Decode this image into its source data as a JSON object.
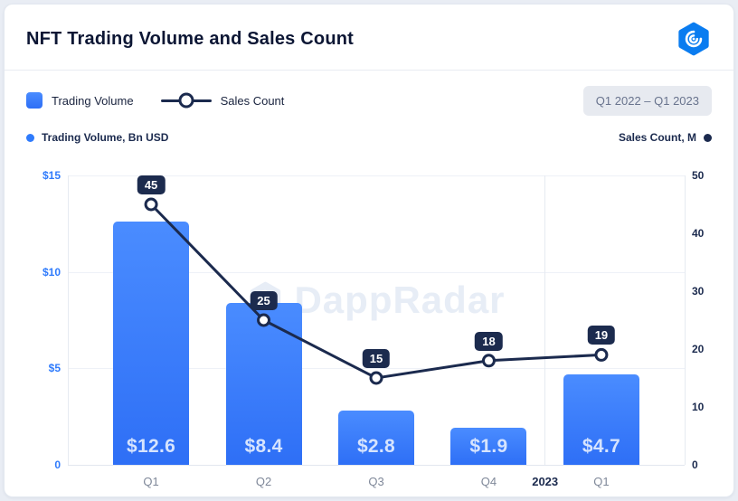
{
  "header": {
    "title": "NFT Trading Volume and Sales Count"
  },
  "legend": {
    "volume": "Trading Volume",
    "sales": "Sales Count",
    "range": "Q1 2022 – Q1 2023"
  },
  "captions": {
    "left": "Trading Volume, Bn USD",
    "right": "Sales Count, M"
  },
  "watermark": "DappRadar",
  "colors": {
    "bar_top": "#4a8cff",
    "bar_bottom": "#2e6ff6",
    "bar_label": "#d6e4fe",
    "line": "#1b2a4e",
    "badge_bg": "#1c2b4e",
    "badge_text": "#ffffff",
    "left_axis": "#2f7bfc",
    "right_axis": "#1b2a4e",
    "logo_blue": "#0a7cf0"
  },
  "chart_data": {
    "type": "bar+line",
    "title": "NFT Trading Volume and Sales Count",
    "categories": [
      "Q1",
      "Q2",
      "Q3",
      "Q4",
      "Q1"
    ],
    "year_divider": {
      "label": "2023",
      "between": [
        "Q4",
        "Q1"
      ]
    },
    "series": [
      {
        "name": "Trading Volume",
        "type": "bar",
        "axis": "left",
        "unit": "Bn USD",
        "values": [
          12.6,
          8.4,
          2.8,
          1.9,
          4.7
        ],
        "labels": [
          "$12.6",
          "$8.4",
          "$2.8",
          "$1.9",
          "$4.7"
        ]
      },
      {
        "name": "Sales Count",
        "type": "line",
        "axis": "right",
        "unit": "M",
        "values": [
          45,
          25,
          15,
          18,
          19
        ]
      }
    ],
    "left_axis": {
      "min": 0,
      "max": 15,
      "ticks": [
        {
          "value": 15,
          "label": "$15"
        },
        {
          "value": 10,
          "label": "$10"
        },
        {
          "value": 5,
          "label": "$5"
        },
        {
          "value": 0,
          "label": "0"
        }
      ]
    },
    "right_axis": {
      "min": 0,
      "max": 50,
      "ticks": [
        {
          "value": 50,
          "label": "50"
        },
        {
          "value": 40,
          "label": "40"
        },
        {
          "value": 30,
          "label": "30"
        },
        {
          "value": 20,
          "label": "20"
        },
        {
          "value": 10,
          "label": "10"
        },
        {
          "value": 0,
          "label": "0"
        }
      ]
    },
    "legend_position": "top-left",
    "grid": "horizontal-light"
  }
}
